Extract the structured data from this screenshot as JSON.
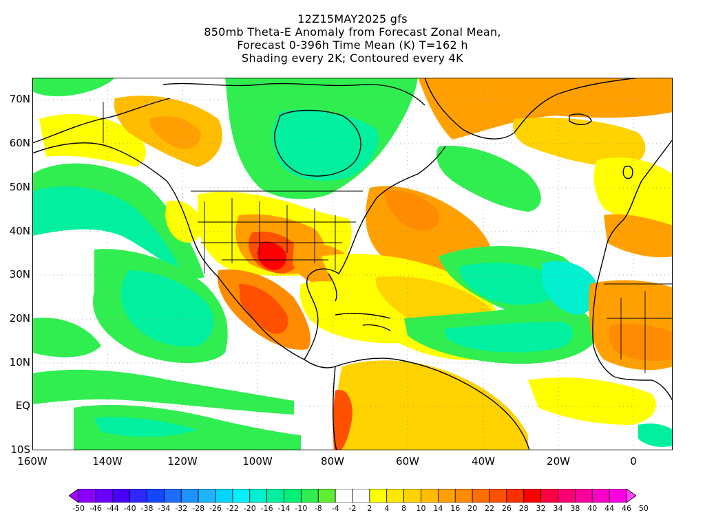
{
  "title": {
    "line1": "12Z15MAY2025 gfs",
    "line2": "850mb Theta-E Anomaly from Forecast Zonal Mean,",
    "line3": "Forecast 0-396h Time Mean (K) T=162 h",
    "line4": "Shading every 2K; Contoured every 4K"
  },
  "map": {
    "lat_labels": [
      "70N",
      "60N",
      "50N",
      "40N",
      "30N",
      "20N",
      "10N",
      "EQ",
      "10S"
    ],
    "lon_labels": [
      "160W",
      "140W",
      "120W",
      "100W",
      "80W",
      "60W",
      "40W",
      "20W",
      "0"
    ]
  },
  "colorbar": {
    "labels": [
      "-50",
      "-46",
      "-44",
      "-40",
      "-38",
      "-34",
      "-32",
      "-28",
      "-26",
      "-22",
      "-20",
      "-16",
      "-14",
      "-10",
      "-8",
      "-4",
      "-2",
      "2",
      "4",
      "8",
      "10",
      "14",
      "16",
      "20",
      "22",
      "26",
      "28",
      "32",
      "34",
      "38",
      "40",
      "44",
      "46",
      "50"
    ],
    "colors": [
      "#a000ff",
      "#8a00ff",
      "#6a00ff",
      "#4b00ff",
      "#2c28ff",
      "#1448ff",
      "#1e6cff",
      "#1e90ff",
      "#1eb4ff",
      "#00d4ff",
      "#00f0ff",
      "#00f0d0",
      "#00f0a0",
      "#00f078",
      "#30ee50",
      "#60ee30",
      "#ffffff",
      "#ffffff",
      "#ffff00",
      "#ffe800",
      "#ffd200",
      "#ffbc00",
      "#ffa000",
      "#ff8c00",
      "#ff6e00",
      "#ff5000",
      "#ff3000",
      "#ff0000",
      "#ff0040",
      "#ff0070",
      "#ff00a0",
      "#ff00c8",
      "#ff00e0",
      "#ff40ff"
    ]
  },
  "colors": {
    "strong_negative": "#00f0d0",
    "negative": "#00f078",
    "slight_negative": "#60ee30",
    "neutral": "#ffffff",
    "slight_positive": "#ffff00",
    "positive": "#ffd200",
    "warm": "#ffa000",
    "hot": "#ff5000",
    "very_hot": "#ff0000"
  }
}
